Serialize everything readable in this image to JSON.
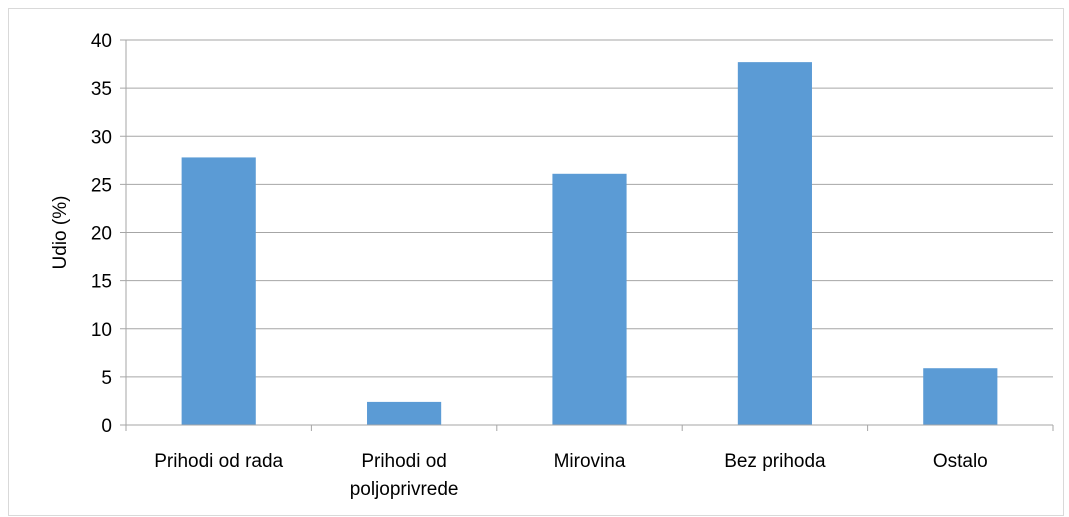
{
  "chart_data": {
    "type": "bar",
    "categories": [
      [
        "Prihodi od rada"
      ],
      [
        "Prihodi od",
        "poljoprivrede"
      ],
      [
        "Mirovina"
      ],
      [
        "Bez prihoda"
      ],
      [
        "Ostalo"
      ]
    ],
    "values": [
      27.8,
      2.4,
      26.1,
      37.7,
      5.9
    ],
    "ylabel": "Udio (%)",
    "ylim": [
      0,
      40
    ],
    "yticks": [
      "0",
      "5",
      "10",
      "15",
      "20",
      "25",
      "30",
      "35",
      "40"
    ],
    "grid": true,
    "bar_color": "#5b9bd5",
    "grid_color": "#a6a6a6"
  }
}
